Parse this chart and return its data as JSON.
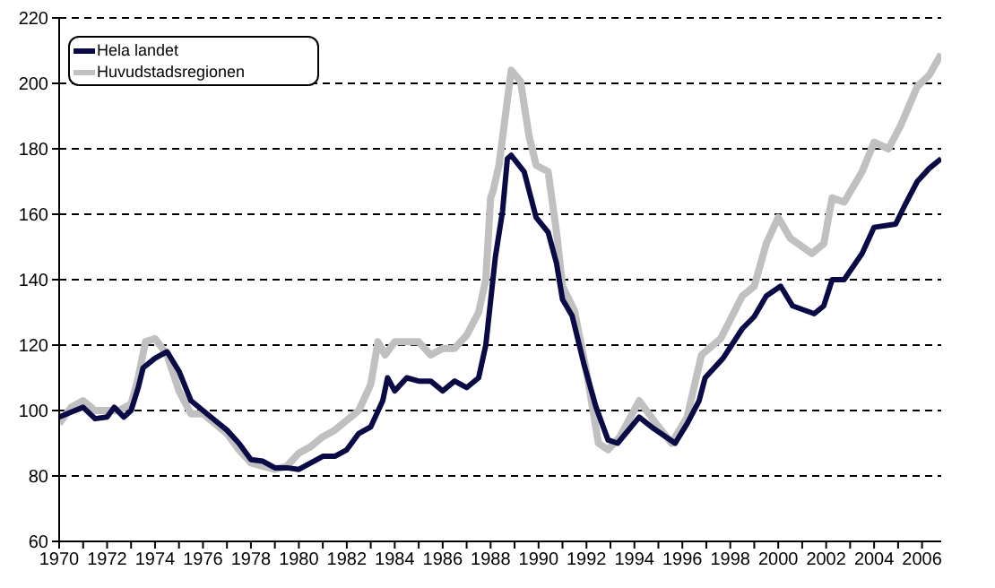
{
  "chart_data": {
    "type": "line",
    "xlim": [
      1970,
      2006.8
    ],
    "ylim": [
      60,
      220
    ],
    "yticks": [
      60,
      80,
      100,
      120,
      140,
      160,
      180,
      200,
      220
    ],
    "xticks": [
      1970,
      {
        "value": 1971,
        "label": null
      },
      1972,
      {
        "value": 1973,
        "label": null
      },
      1974,
      {
        "value": 1975,
        "label": null
      },
      1976,
      {
        "value": 1977,
        "label": null
      },
      1978,
      {
        "value": 1979,
        "label": null
      },
      1980,
      {
        "value": 1981,
        "label": null
      },
      1982,
      {
        "value": 1983,
        "label": null
      },
      1984,
      {
        "value": 1985,
        "label": null
      },
      1986,
      {
        "value": 1987,
        "label": null
      },
      1988,
      {
        "value": 1989,
        "label": null
      },
      1990,
      {
        "value": 1991,
        "label": null
      },
      1992,
      {
        "value": 1993,
        "label": null
      },
      1994,
      {
        "value": 1995,
        "label": null
      },
      1996,
      {
        "value": 1997,
        "label": null
      },
      1998,
      {
        "value": 1999,
        "label": null
      },
      2000,
      {
        "value": 2001,
        "label": null
      },
      2002,
      {
        "value": 2003,
        "label": null
      },
      2004,
      {
        "value": 2005,
        "label": null
      },
      2006
    ],
    "grid": "y",
    "legend": "top left",
    "marker": "none",
    "line_style": "solid",
    "series": [
      {
        "name": "Hela landet",
        "color": "#0a0a46",
        "x": [
          1970,
          1970.5,
          1971,
          1971.5,
          1972,
          1972.3,
          1972.7,
          1973,
          1973.3,
          1973.5,
          1974,
          1974.5,
          1975,
          1975.5,
          1976,
          1976.5,
          1977,
          1977.5,
          1978,
          1978.5,
          1979,
          1979.5,
          1980,
          1980.5,
          1981,
          1981.5,
          1982,
          1982.5,
          1983,
          1983.5,
          1983.7,
          1984,
          1984.5,
          1985,
          1985.5,
          1986,
          1986.5,
          1987,
          1987.5,
          1987.8,
          1988.2,
          1988.5,
          1988.7,
          1988.86,
          1989.4,
          1989.9,
          1990.4,
          1990.75,
          1991,
          1991.4,
          1991.9,
          1992.4,
          1992.9,
          1993.3,
          1994.2,
          1994.8,
          1995.7,
          1996.2,
          1996.7,
          1996.95,
          1997.7,
          1998.5,
          1999,
          1999.5,
          2000.1,
          2000.6,
          2001.5,
          2001.9,
          2002.25,
          2002.75,
          2003.5,
          2004,
          2004.9,
          2005.3,
          2005.8,
          2006.3,
          2006.8
        ],
        "values": [
          98,
          99.5,
          101,
          97.5,
          98,
          101,
          98,
          100,
          107,
          113,
          116,
          118,
          112,
          103,
          100,
          97,
          94,
          90,
          85,
          84.5,
          82.5,
          82.5,
          82,
          84,
          86,
          86,
          88,
          93,
          95,
          103,
          110,
          106,
          110,
          109,
          109,
          106,
          109,
          107,
          110,
          120,
          147,
          161,
          177,
          178,
          173,
          159,
          154.5,
          145,
          134,
          129,
          114,
          101,
          91,
          90,
          98,
          94.5,
          90,
          96,
          103,
          110,
          116,
          125,
          128.7,
          135,
          138,
          132,
          129.6,
          132,
          140,
          140,
          148,
          156,
          157,
          163,
          170,
          174,
          177
        ]
      },
      {
        "name": "Huvudstadsregionen",
        "color": "#c0c0c0",
        "x": [
          1970,
          1970.5,
          1971,
          1971.5,
          1972,
          1972.5,
          1973,
          1973.3,
          1973.6,
          1974,
          1974.5,
          1975,
          1975.5,
          1976,
          1976.5,
          1977,
          1977.5,
          1978,
          1978.5,
          1979,
          1979.5,
          1980,
          1980.5,
          1981,
          1981.5,
          1982,
          1982.5,
          1983,
          1983.3,
          1983.6,
          1984,
          1984.5,
          1985,
          1985.5,
          1986,
          1986.5,
          1987,
          1987.5,
          1987.8,
          1988,
          1988.1,
          1988.35,
          1988.86,
          1989.25,
          1989.6,
          1989.9,
          1990.4,
          1990.75,
          1991,
          1991.5,
          1992,
          1992.5,
          1992.9,
          1993.4,
          1994.2,
          1994.8,
          1995.55,
          1996.2,
          1996.8,
          1997.6,
          1998.5,
          1999,
          1999.5,
          2000,
          2000.5,
          2001.4,
          2001.9,
          2002.25,
          2002.75,
          2003.5,
          2004,
          2004.6,
          2005.1,
          2005.8,
          2006.3,
          2006.8
        ],
        "values": [
          96,
          101,
          103,
          100,
          100,
          100,
          102,
          110,
          121,
          122,
          117,
          106,
          99,
          99,
          96,
          93,
          88,
          84,
          83,
          82,
          83,
          87,
          89,
          92,
          94,
          97,
          100,
          108,
          121,
          117,
          121,
          121,
          121,
          117,
          119,
          119,
          123,
          130,
          140,
          165,
          167,
          175,
          204,
          200.6,
          184,
          175,
          173,
          154.5,
          138,
          130.5,
          112,
          90,
          88,
          92,
          103,
          97,
          90,
          98,
          117,
          122,
          135,
          138,
          151,
          159,
          152.7,
          148,
          151,
          165,
          163.7,
          173,
          182,
          180,
          187,
          199,
          202.5,
          209
        ]
      }
    ]
  }
}
